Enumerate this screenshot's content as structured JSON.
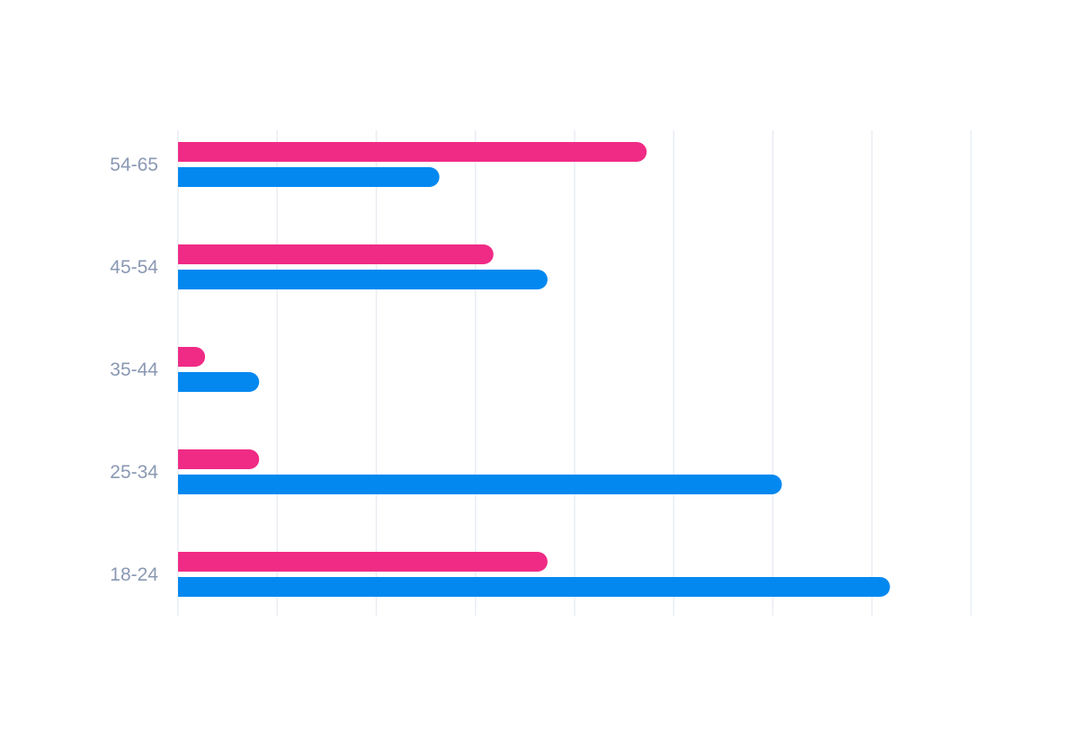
{
  "chart_data": {
    "type": "bar",
    "orientation": "horizontal",
    "title": "",
    "xlabel": "",
    "ylabel": "",
    "categories": [
      "54-65",
      "45-54",
      "35-44",
      "25-34",
      "18-24"
    ],
    "series": [
      {
        "color": "#f02b85",
        "values": [
          52,
          35,
          3,
          9,
          41
        ]
      },
      {
        "color": "#0388f0",
        "values": [
          29,
          41,
          9,
          67,
          79
        ]
      }
    ],
    "xlim": [
      0,
      88
    ],
    "grid": true,
    "gridlines": 8,
    "legend": "none"
  }
}
